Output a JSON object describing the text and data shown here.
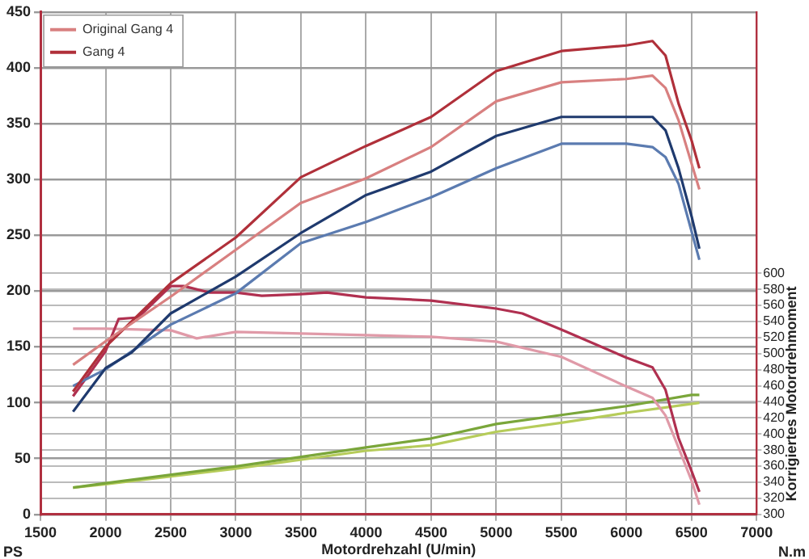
{
  "chart_data": {
    "type": "line",
    "xlabel": "Motordrehzahl (U/min)",
    "ylabel": "PS",
    "y2label": "Korrigiertes Motordrehmoment",
    "annotations": [
      "N.m"
    ],
    "xlim": [
      1500,
      7000
    ],
    "xticks": [
      1500,
      2000,
      2500,
      3000,
      3500,
      4000,
      4500,
      5000,
      5500,
      6000,
      6500,
      7000
    ],
    "ylim": [
      0,
      450
    ],
    "yticks": [
      0,
      50,
      100,
      150,
      200,
      250,
      300,
      350,
      400,
      450
    ],
    "y2lim": [
      300,
      925
    ],
    "y2ticks": [
      300,
      320,
      340,
      360,
      380,
      400,
      420,
      440,
      460,
      480,
      500,
      520,
      540,
      560,
      580,
      600
    ],
    "grid": true,
    "legend": "top left",
    "marker": "none",
    "line_style": "solid",
    "series": [
      {
        "name": "Original Gang 4",
        "color": "#d88080",
        "x": [
          1750,
          2000,
          2500,
          3000,
          3500,
          4000,
          4500,
          5000,
          5500,
          6000,
          6200,
          6300,
          6400,
          6560
        ],
        "values": [
          134,
          155,
          195,
          237,
          279,
          301,
          329,
          370,
          387,
          390,
          393,
          382,
          353,
          291
        ]
      },
      {
        "name": "Gang 4",
        "color": "#b0303a",
        "x": [
          1750,
          2000,
          2500,
          3000,
          3500,
          4000,
          4500,
          5000,
          5500,
          6000,
          6200,
          6300,
          6400,
          6500,
          6560
        ],
        "values": [
          110,
          150,
          207,
          248,
          302,
          330,
          356,
          397,
          415,
          420,
          424,
          411,
          368,
          335,
          310
        ]
      },
      {
        "color": "#1f3a6e",
        "x": [
          1750,
          2000,
          2200,
          2500,
          3000,
          3500,
          4000,
          4500,
          5000,
          5500,
          6000,
          6200,
          6300,
          6400,
          6500,
          6560
        ],
        "values": [
          92,
          131,
          145,
          180,
          213,
          252,
          286,
          307,
          339,
          356,
          356,
          356,
          344,
          310,
          267,
          238
        ]
      },
      {
        "color": "#5b7bb0",
        "x": [
          1750,
          2000,
          2500,
          3000,
          3500,
          4000,
          4500,
          5000,
          5500,
          6000,
          6200,
          6300,
          6400,
          6560
        ],
        "values": [
          115,
          130,
          170,
          198,
          243,
          262,
          284,
          310,
          332,
          332,
          329,
          320,
          296,
          228
        ]
      },
      {
        "color": "#b03050",
        "axis": "y2",
        "x": [
          1750,
          2000,
          2100,
          2250,
          2500,
          2600,
          2800,
          3000,
          3200,
          3500,
          3700,
          4000,
          4500,
          5000,
          5200,
          5500,
          6000,
          6200,
          6300,
          6400,
          6500,
          6560
        ],
        "values": [
          447,
          503,
          543,
          545,
          584,
          584,
          576,
          576,
          572,
          574,
          576,
          570,
          566,
          556,
          550,
          530,
          495,
          483,
          455,
          395,
          354,
          328
        ]
      },
      {
        "color": "#e09aa8",
        "axis": "y2",
        "x": [
          1750,
          2000,
          2500,
          2700,
          3000,
          3500,
          4000,
          4500,
          5000,
          5500,
          6000,
          6200,
          6300,
          6400,
          6500,
          6560
        ],
        "values": [
          531,
          531,
          529,
          519,
          527,
          525,
          523,
          521,
          515,
          496,
          459,
          445,
          423,
          383,
          342,
          312
        ]
      },
      {
        "color": "#7aa63a",
        "x": [
          1750,
          2000,
          3000,
          4000,
          4500,
          5000,
          5500,
          6000,
          6500,
          6560
        ],
        "values": [
          24,
          28,
          43,
          60,
          68,
          81,
          89,
          97,
          107,
          107
        ]
      },
      {
        "color": "#b6cc5a",
        "x": [
          1750,
          2000,
          3000,
          4000,
          4500,
          5000,
          5500,
          6000,
          6560
        ],
        "values": [
          24,
          27,
          41,
          57,
          62,
          74,
          82,
          91,
          100
        ]
      }
    ]
  }
}
